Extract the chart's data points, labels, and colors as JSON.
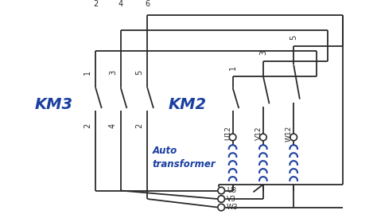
{
  "bg_color": "#ffffff",
  "line_color": "#2a2a2a",
  "blue_color": "#1a3fa0",
  "km3_label": "KM3",
  "km2_label": "KM2",
  "auto_label": "Auto\ntransformer",
  "km3_switch_top_labels": [
    "2",
    "4",
    "6"
  ],
  "km3_switch_mid_labels": [
    "1",
    "3",
    "5"
  ],
  "km3_switch_bot_labels": [
    "2",
    "4",
    "2"
  ],
  "km2_switch_top_labels": [
    "1",
    "3",
    "5"
  ],
  "km2_switch_bot_labels": [
    "U12",
    "V12",
    "W12"
  ],
  "bottom_labels": [
    "U3",
    "V3",
    "W3"
  ],
  "figsize": [
    4.74,
    2.74
  ],
  "dpi": 100
}
